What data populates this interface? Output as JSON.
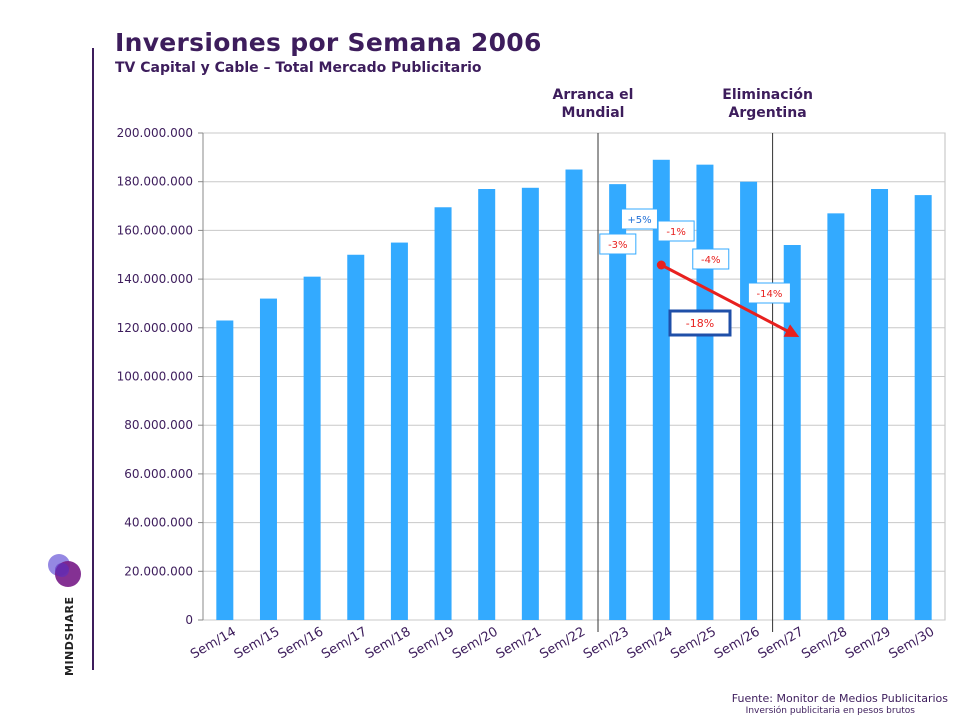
{
  "header": {
    "title": "Inversiones por Semana 2006",
    "subtitle": "TV Capital y Cable – Total Mercado Publicitario"
  },
  "brand": {
    "name": "MINDSHARE"
  },
  "footer": {
    "source": "Fuente: Monitor de Medios Publicitarios",
    "note": "Inversión publicitaria en pesos brutos"
  },
  "chart_data": {
    "type": "bar",
    "title": "Inversiones por Semana 2006",
    "subtitle": "TV Capital y Cable – Total Mercado Publicitario",
    "categories": [
      "Sem/14",
      "Sem/15",
      "Sem/16",
      "Sem/17",
      "Sem/18",
      "Sem/19",
      "Sem/20",
      "Sem/21",
      "Sem/22",
      "Sem/23",
      "Sem/24",
      "Sem/25",
      "Sem/26",
      "Sem/27",
      "Sem/28",
      "Sem/29",
      "Sem/30"
    ],
    "values": [
      123000000,
      132000000,
      141000000,
      150000000,
      155000000,
      169500000,
      177000000,
      177500000,
      185000000,
      179000000,
      189000000,
      187000000,
      180000000,
      154000000,
      167000000,
      177000000,
      174500000
    ],
    "ylim": [
      0,
      200000000
    ],
    "yticks": [
      "0",
      "20.000.000",
      "40.000.000",
      "60.000.000",
      "80.000.000",
      "100.000.000",
      "120.000.000",
      "140.000.000",
      "160.000.000",
      "180.000.000",
      "200.000.000"
    ],
    "grid": true,
    "bar_color": "#33aaff",
    "events": [
      {
        "label": "Arranca el Mundial",
        "lines": [
          "Arranca el",
          "Mundial"
        ],
        "after_category": "Sem/22"
      },
      {
        "label": "Eliminación Argentina",
        "lines": [
          "Eliminación",
          "Argentina"
        ],
        "after_category": "Sem/26"
      }
    ],
    "annotations": [
      {
        "text": "-3%",
        "category": "Sem/22"
      },
      {
        "text": "+5%",
        "category": "Sem/23"
      },
      {
        "text": "-1%",
        "category": "Sem/24"
      },
      {
        "text": "-4%",
        "category": "Sem/25"
      },
      {
        "text": "-14%",
        "category": "Sem/26"
      }
    ],
    "trend": {
      "text": "-18%",
      "from": "Sem/24",
      "to": "Sem/27",
      "color": "#e8201e"
    }
  }
}
